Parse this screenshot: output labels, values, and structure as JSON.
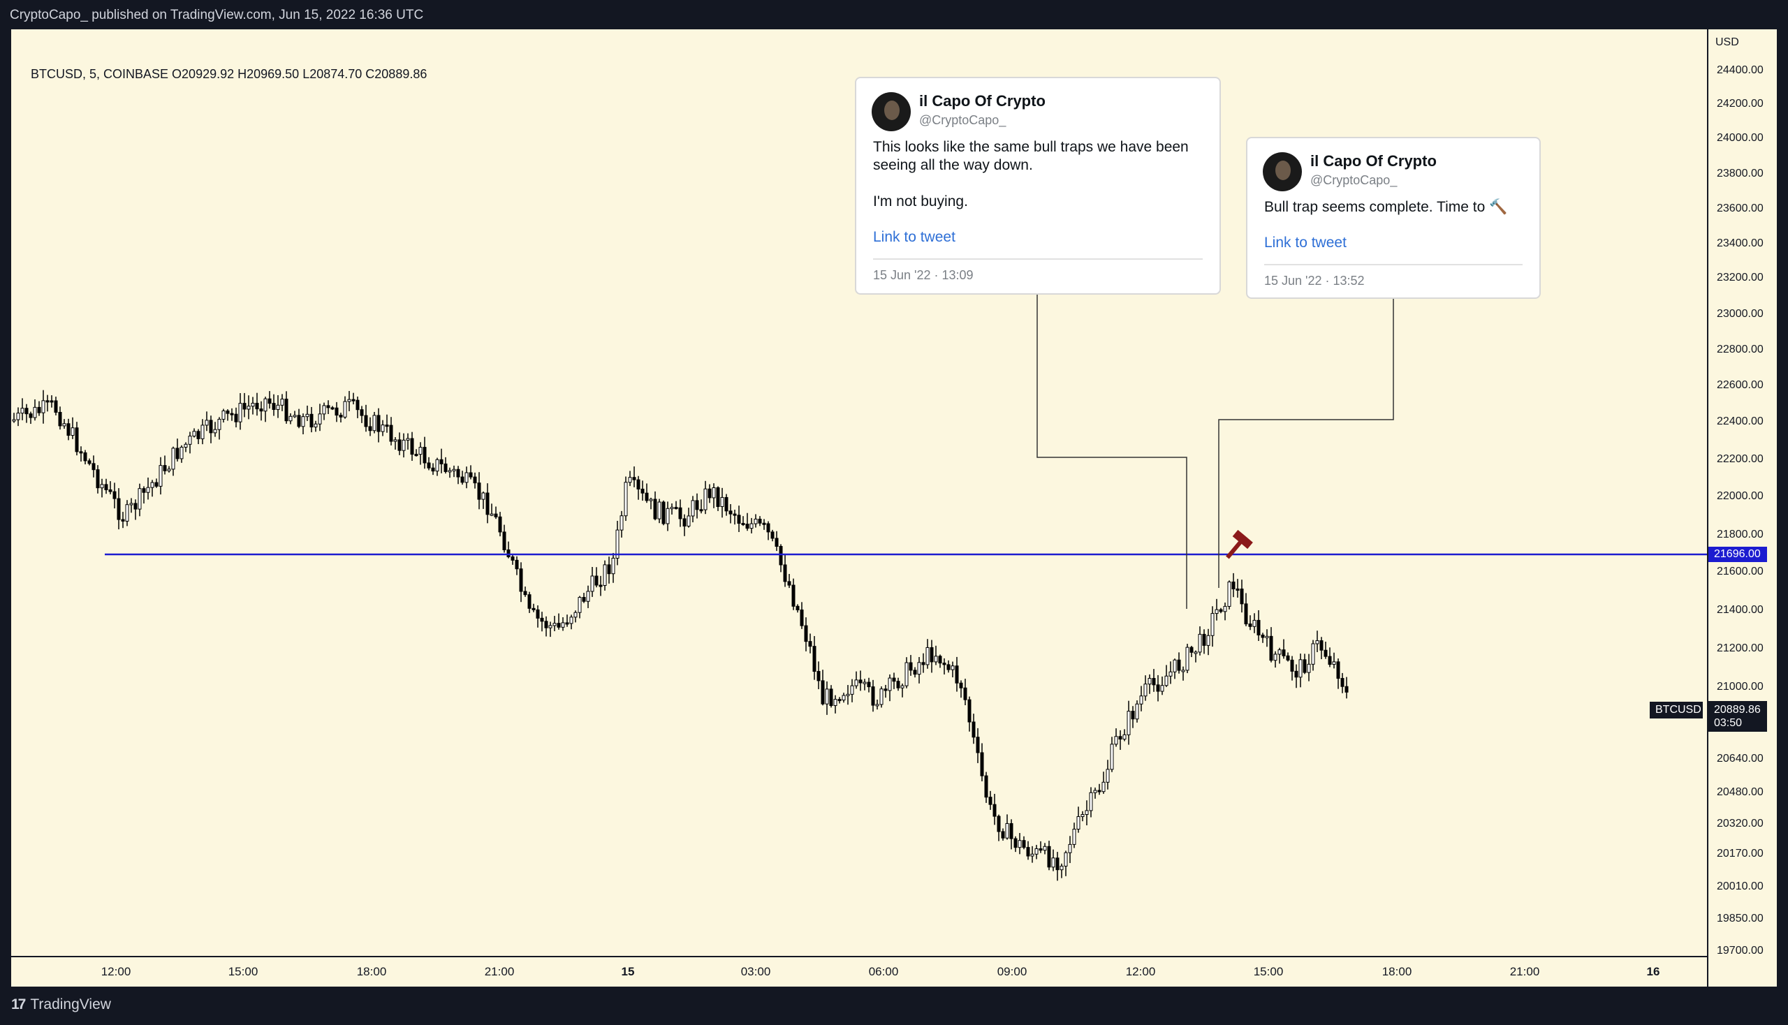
{
  "header": {
    "publish_line": "CryptoCapo_ published on TradingView.com, Jun 15, 2022 16:36 UTC"
  },
  "symbol_line": {
    "text": "BTCUSD, 5, COINBASE  O20929.92  H20969.50  L20874.70  C20889.86"
  },
  "price_axis": {
    "unit": "USD",
    "ticks": [
      "24400.00",
      "24200.00",
      "24000.00",
      "23800.00",
      "23600.00",
      "23400.00",
      "23200.00",
      "23000.00",
      "22800.00",
      "22600.00",
      "22400.00",
      "22200.00",
      "22000.00",
      "21800.00",
      "21600.00",
      "21400.00",
      "21200.00",
      "21000.00",
      "20640.00",
      "20480.00",
      "20320.00",
      "20170.00",
      "20010.00",
      "19850.00",
      "19700.00"
    ]
  },
  "time_axis": {
    "labels": [
      {
        "text": "12:00",
        "bold": false
      },
      {
        "text": "15:00",
        "bold": false
      },
      {
        "text": "18:00",
        "bold": false
      },
      {
        "text": "21:00",
        "bold": false
      },
      {
        "text": "15",
        "bold": true
      },
      {
        "text": "03:00",
        "bold": false
      },
      {
        "text": "06:00",
        "bold": false
      },
      {
        "text": "09:00",
        "bold": false
      },
      {
        "text": "12:00",
        "bold": false
      },
      {
        "text": "15:00",
        "bold": false
      },
      {
        "text": "18:00",
        "bold": false
      },
      {
        "text": "21:00",
        "bold": false
      },
      {
        "text": "16",
        "bold": true
      }
    ]
  },
  "horizontal_line": {
    "price_label": "21696.00",
    "color": "#1c1cd0"
  },
  "last_price": {
    "symbol": "BTCUSD",
    "price": "20889.86",
    "countdown": "03:50"
  },
  "tweets": [
    {
      "name": "il Capo Of Crypto",
      "handle": "@CryptoCapo_",
      "text_lines": [
        "This looks like the same bull traps we have been",
        "seeing all the way down.",
        "",
        "I'm not buying."
      ],
      "link": "Link to tweet",
      "date": "15 Jun '22 · 13:09"
    },
    {
      "name": "il Capo Of Crypto",
      "handle": "@CryptoCapo_",
      "text_lines": [
        "Bull trap seems complete. Time to 🔨"
      ],
      "link": "Link to tweet",
      "date": "15 Jun '22 · 13:52"
    }
  ],
  "footer": {
    "brand": "TradingView",
    "logo": "17"
  },
  "colors": {
    "background": "#fcf7df",
    "frame": "#131722",
    "candle": "#000000",
    "link": "#2e6fd6",
    "hammer": "#8b1a1a"
  },
  "icons": [
    "tradingview-logo-icon",
    "avatar-icon",
    "hammer-icon"
  ]
}
